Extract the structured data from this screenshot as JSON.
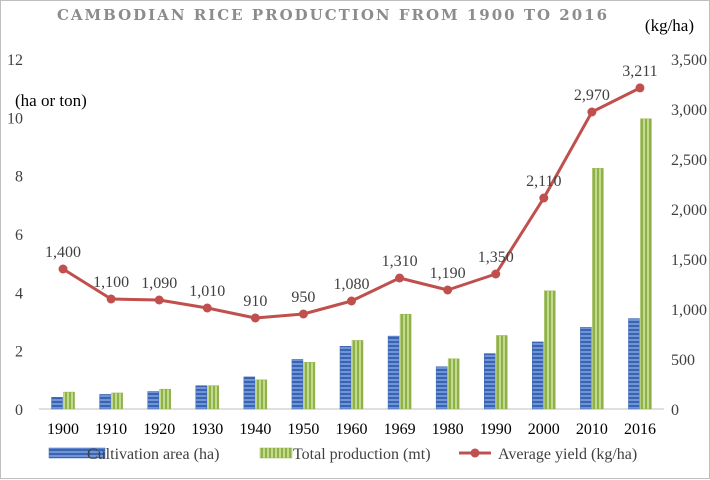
{
  "chart_data": {
    "type": "bar",
    "title": "CAMBODIAN RICE PRODUCTION FROM 1900 TO 2016",
    "categories": [
      "1900",
      "1910",
      "1920",
      "1930",
      "1940",
      "1950",
      "1960",
      "1969",
      "1980",
      "1990",
      "2000",
      "2010",
      "2016"
    ],
    "left_axis": {
      "unit_label": "(ha or ton)",
      "ylim": [
        0,
        12
      ],
      "ticks": [
        0,
        2,
        4,
        6,
        8,
        10,
        12
      ]
    },
    "right_axis": {
      "unit_label": "(kg/ha)",
      "ylim": [
        0,
        3500
      ],
      "ticks": [
        "0",
        "500",
        "1,000",
        "1,500",
        "2,000",
        "2,500",
        "3,000",
        "3,500"
      ]
    },
    "series": [
      {
        "name": "Cultivation area  (ha)",
        "type": "bar",
        "axis": "left",
        "color": "#4472c4",
        "values": [
          0.4,
          0.5,
          0.6,
          0.8,
          1.1,
          1.7,
          2.15,
          2.5,
          1.45,
          1.9,
          2.3,
          2.8,
          3.1
        ]
      },
      {
        "name": "Total production (mt)",
        "type": "bar",
        "axis": "left",
        "color": "#9bbb59",
        "values": [
          0.58,
          0.55,
          0.68,
          0.8,
          1.0,
          1.6,
          2.35,
          3.25,
          1.72,
          2.52,
          4.05,
          8.25,
          9.95
        ]
      },
      {
        "name": "Average yield (kg/ha)",
        "type": "line",
        "axis": "right",
        "color": "#c0504d",
        "values": [
          1400,
          1100,
          1090,
          1010,
          910,
          950,
          1080,
          1310,
          1190,
          1350,
          2110,
          2970,
          3211
        ],
        "labels": [
          "1,400",
          "1,100",
          "1,090",
          "1,010",
          "910",
          "950",
          "1,080",
          "1,310",
          "1,190",
          "1,350",
          "2,110",
          "2,970",
          "3,211"
        ]
      }
    ],
    "legend_position": "bottom",
    "grid": false
  }
}
